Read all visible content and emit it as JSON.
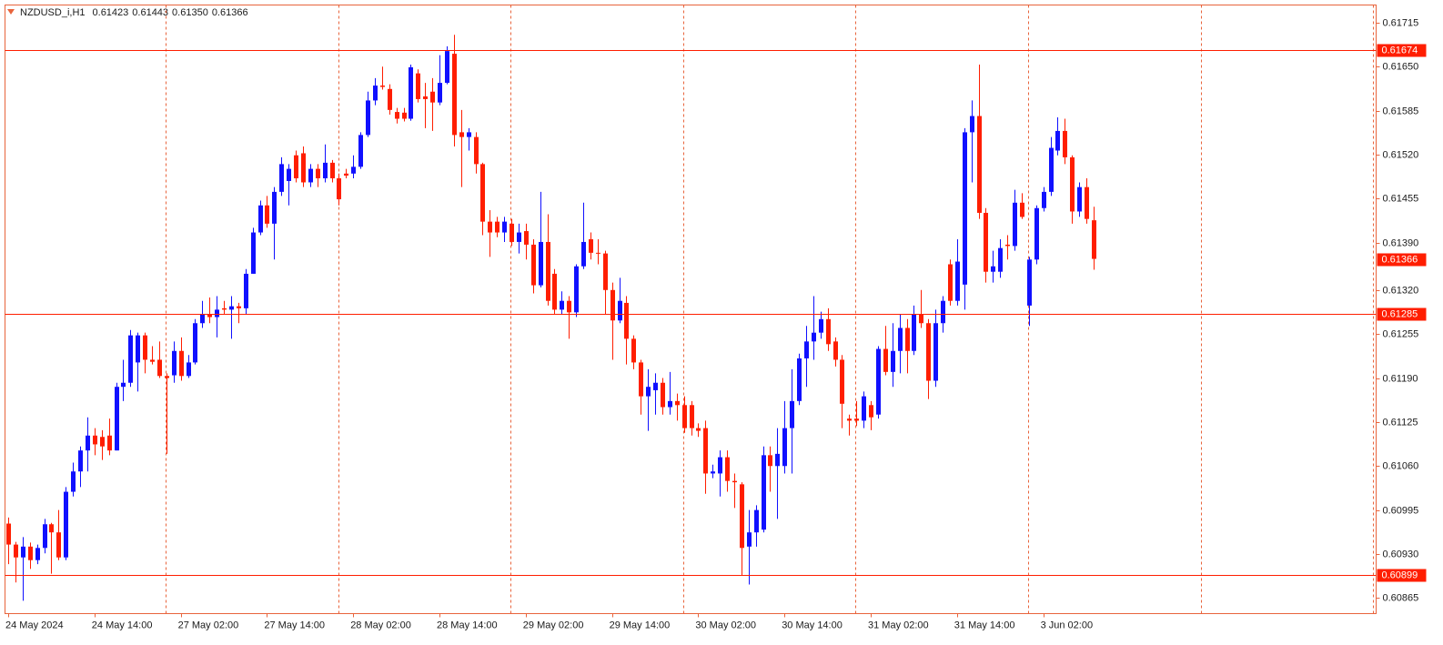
{
  "header": {
    "symbol": "NZDUSD_i,H1",
    "ohlc": [
      "0.61423",
      "0.61443",
      "0.61350",
      "0.61366"
    ]
  },
  "chart_data": {
    "type": "candlestick",
    "colors": {
      "up": "#1010ff",
      "down": "#ff1e00",
      "level": "#ff1e00"
    },
    "ylim": [
      0.60842,
      0.61741
    ],
    "yticks": [
      0.61715,
      {
        "value": 0.6165,
        "label": "0.61650"
      },
      0.61585,
      {
        "value": 0.6152,
        "label": "0.61520"
      },
      0.61455,
      {
        "value": 0.6139,
        "label": "0.61390"
      },
      {
        "value": 0.6132,
        "label": "0.61320"
      },
      0.61255,
      {
        "value": 0.6119,
        "label": "0.61190"
      },
      0.61125,
      {
        "value": 0.6106,
        "label": "0.61060"
      },
      0.60995,
      {
        "value": 0.6093,
        "label": "0.60930"
      },
      0.60865
    ],
    "levels": [
      0.61674,
      0.61285,
      0.60899
    ],
    "last_price": 0.61366,
    "grid": true,
    "categories": [
      "24 May 2024",
      null,
      null,
      null,
      null,
      null,
      null,
      null,
      null,
      null,
      null,
      null,
      "24 May 14:00",
      null,
      null,
      null,
      null,
      null,
      null,
      null,
      null,
      null,
      null,
      null,
      "27 May 02:00",
      null,
      null,
      null,
      null,
      null,
      null,
      null,
      null,
      null,
      null,
      null,
      "27 May 14:00",
      null,
      null,
      null,
      null,
      null,
      null,
      null,
      null,
      null,
      null,
      null,
      "28 May 02:00",
      null,
      null,
      null,
      null,
      null,
      null,
      null,
      null,
      null,
      null,
      null,
      "28 May 14:00",
      null,
      null,
      null,
      null,
      null,
      null,
      null,
      null,
      null,
      null,
      null,
      "29 May 02:00",
      null,
      null,
      null,
      null,
      null,
      null,
      null,
      null,
      null,
      null,
      null,
      "29 May 14:00",
      null,
      null,
      null,
      null,
      null,
      null,
      null,
      null,
      null,
      null,
      null,
      "30 May 02:00",
      null,
      null,
      null,
      null,
      null,
      null,
      null,
      null,
      null,
      null,
      null,
      "30 May 14:00",
      null,
      null,
      null,
      null,
      null,
      null,
      null,
      null,
      null,
      null,
      null,
      "31 May 02:00",
      null,
      null,
      null,
      null,
      null,
      null,
      null,
      null,
      null,
      null,
      null,
      "31 May 14:00",
      null,
      null,
      null,
      null,
      null,
      null,
      null,
      null,
      null,
      null,
      null,
      "3 Jun 02:00",
      null,
      null,
      null,
      null,
      null,
      null,
      null
    ],
    "open": [
      0.60975,
      0.60944,
      0.60925,
      0.60941,
      0.60921,
      0.60939,
      0.60974,
      0.60962,
      0.60925,
      0.61022,
      0.61052,
      0.61083,
      0.61105,
      0.61103,
      0.61105,
      0.61083,
      0.61177,
      0.61183,
      0.61213,
      0.61253,
      0.61217,
      0.61217,
      0.61193,
      0.61194,
      0.6123,
      0.61193,
      0.61213,
      0.61271,
      0.61284,
      0.6128,
      0.61293,
      0.61291,
      0.61296,
      0.61293,
      0.61344,
      0.61405,
      0.61445,
      0.61418,
      0.61465,
      0.61481,
      0.61519,
      0.61522,
      0.61479,
      0.61499,
      0.61485,
      0.61508,
      0.61485,
      0.61492,
      0.61492,
      0.61502,
      0.61549,
      0.616,
      0.61622,
      0.61617,
      0.61583,
      0.61582,
      0.61573,
      0.6164,
      0.61606,
      0.61613,
      0.61597,
      0.61626,
      0.61669,
      0.61553,
      0.61546,
      0.61546,
      0.61506,
      0.61421,
      0.61421,
      0.61405,
      0.61418,
      0.61391,
      0.61407,
      0.61387,
      0.61327,
      0.61391,
      0.61344,
      0.61291,
      0.61304,
      0.61287,
      0.61355,
      0.61395,
      0.61375,
      0.61374,
      0.6132,
      0.61275,
      0.61301,
      0.61248,
      0.61213,
      0.61163,
      0.61172,
      0.61183,
      0.61147,
      0.61156,
      0.6115,
      0.6115,
      0.61116,
      0.61116,
      0.61049,
      0.61049,
      0.61073,
      0.61038,
      0.61033,
      0.60941,
      0.60962,
      0.60966,
      0.61076,
      0.6106,
      0.6106,
      0.61116,
      0.61156,
      0.61219,
      0.61244,
      0.61257,
      0.61277,
      0.61244,
      0.61217,
      0.6113,
      0.6113,
      0.61127,
      0.6115,
      0.61136,
      0.61233,
      0.61199,
      0.6123,
      0.61264,
      0.6123,
      0.61284,
      0.61271,
      0.61186,
      0.61271,
      0.61358,
      0.61304,
      0.61328,
      0.61553,
      0.61577,
      0.61434,
      0.61347,
      0.61347,
      0.61387,
      0.61385,
      0.61449,
      0.61297,
      0.61365,
      0.61441,
      0.61465,
      0.61526,
      0.61555,
      0.61516,
      0.61436,
      0.61472,
      0.61423
    ],
    "high": [
      0.60984,
      0.60948,
      0.60955,
      0.60947,
      0.60944,
      0.60982,
      0.60976,
      0.60995,
      0.61029,
      0.61065,
      0.61089,
      0.61132,
      0.61116,
      0.61113,
      0.6113,
      0.61183,
      0.61217,
      0.61261,
      0.61257,
      0.61257,
      0.61237,
      0.61244,
      0.61197,
      0.61244,
      0.6125,
      0.61224,
      0.61277,
      0.61304,
      0.61309,
      0.61311,
      0.61304,
      0.61311,
      0.61301,
      0.61351,
      0.61412,
      0.61452,
      0.61459,
      0.61472,
      0.61516,
      0.61506,
      0.61526,
      0.61532,
      0.61506,
      0.61506,
      0.61535,
      0.61512,
      0.61492,
      0.61499,
      0.61519,
      0.61553,
      0.61613,
      0.61633,
      0.6165,
      0.61624,
      0.61589,
      0.61589,
      0.61653,
      0.61646,
      0.61626,
      0.61633,
      0.61667,
      0.6168,
      0.61697,
      0.61586,
      0.61559,
      0.61553,
      0.61508,
      0.61438,
      0.61428,
      0.61428,
      0.61425,
      0.61418,
      0.61418,
      0.61395,
      0.61465,
      0.61432,
      0.61351,
      0.61318,
      0.61311,
      0.61358,
      0.61449,
      0.61405,
      0.61395,
      0.61378,
      0.61331,
      0.61338,
      0.61311,
      0.61253,
      0.61217,
      0.61203,
      0.61197,
      0.6119,
      0.61199,
      0.61167,
      0.61163,
      0.61156,
      0.61123,
      0.61127,
      0.61062,
      0.61083,
      0.61083,
      0.61049,
      0.61036,
      0.60995,
      0.61002,
      0.61089,
      0.61089,
      0.61116,
      0.61156,
      0.61203,
      0.61226,
      0.61267,
      0.61311,
      0.61288,
      0.61293,
      0.6125,
      0.61224,
      0.61136,
      0.61156,
      0.6117,
      0.61156,
      0.61237,
      0.61267,
      0.61271,
      0.61284,
      0.61277,
      0.61297,
      0.6132,
      0.61277,
      0.61291,
      0.61311,
      0.61365,
      0.61395,
      0.61559,
      0.616,
      0.61653,
      0.61441,
      0.61378,
      0.61395,
      0.61401,
      0.61468,
      0.61463,
      0.61369,
      0.61445,
      0.61472,
      0.61546,
      0.61575,
      0.61573,
      0.61519,
      0.61479,
      0.61485,
      0.61443
    ],
    "low": [
      0.60915,
      0.60888,
      0.60861,
      0.60908,
      0.60915,
      0.60931,
      0.60901,
      0.60921,
      0.60921,
      0.61015,
      0.61029,
      0.61052,
      0.61076,
      0.61069,
      0.61076,
      0.61083,
      0.61156,
      0.61177,
      0.6117,
      0.61197,
      0.6121,
      0.6119,
      0.61078,
      0.61183,
      0.61186,
      0.6119,
      0.6121,
      0.61264,
      0.61271,
      0.6125,
      0.61284,
      0.61248,
      0.61271,
      0.61284,
      0.61344,
      0.61401,
      0.61412,
      0.61365,
      0.61459,
      0.61445,
      0.61479,
      0.61472,
      0.61472,
      0.61472,
      0.61479,
      0.61479,
      0.61445,
      0.61485,
      0.61485,
      0.61499,
      0.61546,
      0.61593,
      0.61616,
      0.61579,
      0.61566,
      0.61569,
      0.6157,
      0.61597,
      0.61559,
      0.61555,
      0.61593,
      0.61624,
      0.61532,
      0.61472,
      0.61526,
      0.61492,
      0.61401,
      0.61369,
      0.61398,
      0.61391,
      0.61385,
      0.61374,
      0.61365,
      0.61315,
      0.61324,
      0.61297,
      0.61284,
      0.61284,
      0.61248,
      0.6128,
      0.61351,
      0.61365,
      0.61358,
      0.61284,
      0.61217,
      0.61271,
      0.6121,
      0.61203,
      0.61136,
      0.61112,
      0.61136,
      0.61136,
      0.61136,
      0.61127,
      0.61109,
      0.61105,
      0.61103,
      0.61019,
      0.61042,
      0.61015,
      0.61022,
      0.60998,
      0.60899,
      0.60885,
      0.60941,
      0.60962,
      0.61022,
      0.60982,
      0.61049,
      0.61049,
      0.6115,
      0.61177,
      0.61217,
      0.61248,
      0.6123,
      0.61207,
      0.61116,
      0.61105,
      0.61119,
      0.61116,
      0.61113,
      0.6113,
      0.61194,
      0.61177,
      0.61197,
      0.61197,
      0.61224,
      0.61264,
      0.61159,
      0.61177,
      0.61257,
      0.61297,
      0.61297,
      0.61291,
      0.61479,
      0.61425,
      0.61331,
      0.61331,
      0.61338,
      0.61365,
      0.61378,
      0.61425,
      0.61267,
      0.61358,
      0.61436,
      0.61459,
      0.61519,
      0.61506,
      0.61418,
      0.61428,
      0.61418,
      0.6135
    ],
    "close": [
      0.60944,
      0.60925,
      0.60941,
      0.60921,
      0.60939,
      0.60974,
      0.60962,
      0.60925,
      0.61022,
      0.61052,
      0.61083,
      0.61105,
      0.61092,
      0.61089,
      0.61083,
      0.61177,
      0.61183,
      0.61253,
      0.61253,
      0.61217,
      0.61214,
      0.61193,
      0.6119,
      0.6123,
      0.61193,
      0.61213,
      0.61271,
      0.61284,
      0.6128,
      0.61291,
      0.61291,
      0.61296,
      0.61293,
      0.61344,
      0.61405,
      0.61445,
      0.61418,
      0.61465,
      0.61506,
      0.61499,
      0.61485,
      0.61479,
      0.61499,
      0.61485,
      0.61508,
      0.61485,
      0.61454,
      0.61489,
      0.61502,
      0.61549,
      0.616,
      0.61622,
      0.6162,
      0.61586,
      0.61573,
      0.61573,
      0.61649,
      0.61602,
      0.61602,
      0.61597,
      0.61626,
      0.61673,
      0.61549,
      0.61546,
      0.61553,
      0.61506,
      0.61421,
      0.61405,
      0.61405,
      0.61421,
      0.61391,
      0.61405,
      0.61387,
      0.61327,
      0.61391,
      0.61304,
      0.61291,
      0.61304,
      0.61287,
      0.61355,
      0.61391,
      0.61375,
      0.61374,
      0.6132,
      0.61275,
      0.61304,
      0.61248,
      0.61213,
      0.61163,
      0.61177,
      0.61183,
      0.61147,
      0.61156,
      0.6115,
      0.61116,
      0.61116,
      0.61112,
      0.61049,
      0.61052,
      0.61073,
      0.61038,
      0.61036,
      0.60939,
      0.60962,
      0.60995,
      0.61076,
      0.6106,
      0.61078,
      0.61116,
      0.61156,
      0.61219,
      0.61244,
      0.61257,
      0.61277,
      0.6124,
      0.61217,
      0.61152,
      0.61127,
      0.61127,
      0.61163,
      0.61132,
      0.61233,
      0.61199,
      0.6123,
      0.61264,
      0.6123,
      0.61284,
      0.61271,
      0.61186,
      0.61271,
      0.61304,
      0.61304,
      0.61362,
      0.61553,
      0.61577,
      0.61434,
      0.61347,
      0.61355,
      0.61382,
      0.61385,
      0.61449,
      0.61428,
      0.61365,
      0.61441,
      0.61465,
      0.6153,
      0.61555,
      0.61516,
      0.61436,
      0.61472,
      0.61425,
      0.61366
    ]
  }
}
